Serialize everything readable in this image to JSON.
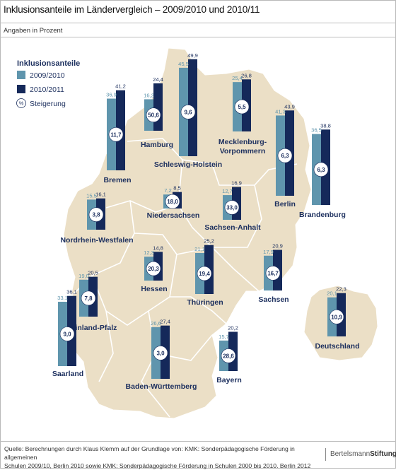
{
  "title": "Inklusionsanteile im Ländervergleich – 2009/2010 und 2010/11",
  "subtitle": "Angaben in Prozent",
  "footer": {
    "source_line1": "Quelle: Berechnungen durch Klaus Klemm auf der Grundlage von: KMK: Sonderpädagogische Förderung in allgemeinen",
    "source_line2": "Schulen 2009/10, Berlin 2010 sowie KMK: Sonderpädagogische Förderung in Schulen 2000 bis 2010. Berlin 2012",
    "brand_left": "Bertelsmann",
    "brand_right": "Stiftung"
  },
  "colors": {
    "series_2009": "#5f95ad",
    "series_2010": "#15295a",
    "map": "#ebdfc6",
    "map_border": "#ffffff",
    "text": "#1c2f5e"
  },
  "chart_data": {
    "type": "bar",
    "title": "Inklusionsanteile im Ländervergleich – 2009/2010 und 2010/11",
    "subtitle": "Angaben in Prozent",
    "legend": {
      "title": "Inklusionsanteile",
      "items": [
        "2009/2010",
        "2010/2011"
      ],
      "circle_symbol": "%",
      "circle_label": "Steigerung",
      "placement": "top-left"
    },
    "series": [
      {
        "name": "2009/2010"
      },
      {
        "name": "2010/2011"
      }
    ],
    "categories": [
      "Schleswig-Holstein",
      "Hamburg",
      "Bremen",
      "Mecklenburg-Vorpommern",
      "Berlin",
      "Brandenburg",
      "Niedersachsen",
      "Sachsen-Anhalt",
      "Nordrhein-Westfalen",
      "Hessen",
      "Thüringen",
      "Sachsen",
      "Rheinland-Pfalz",
      "Saarland",
      "Baden-Württemberg",
      "Bayern",
      "Deutschland"
    ],
    "states": [
      {
        "name": "Schleswig-Holstein",
        "label_lines": [
          "Schleswig-Holstein"
        ],
        "v2009": 45.5,
        "v2010": 49.9,
        "increase": "9,6",
        "v2009_label": "45,5",
        "v2010_label": "49,9"
      },
      {
        "name": "Hamburg",
        "label_lines": [
          "Hamburg"
        ],
        "v2009": 16.2,
        "v2010": 24.4,
        "increase": "50,6",
        "v2009_label": "16,2",
        "v2010_label": "24,4"
      },
      {
        "name": "Bremen",
        "label_lines": [
          "Bremen"
        ],
        "v2009": 36.9,
        "v2010": 41.2,
        "increase": "11,7",
        "v2009_label": "36,9",
        "v2010_label": "41,2"
      },
      {
        "name": "Mecklenburg-Vorpommern",
        "label_lines": [
          "Mecklenburg-",
          "Vorpommern"
        ],
        "v2009": 25.4,
        "v2010": 26.8,
        "increase": "5,5",
        "v2009_label": "25,4",
        "v2010_label": "26,8"
      },
      {
        "name": "Berlin",
        "label_lines": [
          "Berlin"
        ],
        "v2009": 41.3,
        "v2010": 43.9,
        "increase": "6,3",
        "v2009_label": "41,3",
        "v2010_label": "43,9"
      },
      {
        "name": "Brandenburg",
        "label_lines": [
          "Brandenburg"
        ],
        "v2009": 36.5,
        "v2010": 38.8,
        "increase": "6,3",
        "v2009_label": "36,5",
        "v2010_label": "38,8"
      },
      {
        "name": "Niedersachsen",
        "label_lines": [
          "Niedersachsen"
        ],
        "v2009": 7.2,
        "v2010": 8.5,
        "increase": "18,0",
        "v2009_label": "7,2",
        "v2010_label": "8,5"
      },
      {
        "name": "Sachsen-Anhalt",
        "label_lines": [
          "Sachsen-Anhalt"
        ],
        "v2009": 12.7,
        "v2010": 16.9,
        "increase": "33,0",
        "v2009_label": "12,7",
        "v2010_label": "16,9"
      },
      {
        "name": "Nordrhein-Westfalen",
        "label_lines": [
          "Nordrhein-Westfalen"
        ],
        "v2009": 15.5,
        "v2010": 16.1,
        "increase": "3,8",
        "v2009_label": "15,5",
        "v2010_label": "16,1"
      },
      {
        "name": "Hessen",
        "label_lines": [
          "Hessen"
        ],
        "v2009": 12.3,
        "v2010": 14.8,
        "increase": "20,3",
        "v2009_label": "12,3",
        "v2010_label": "14,8"
      },
      {
        "name": "Thüringen",
        "label_lines": [
          "Thüringen"
        ],
        "v2009": 21.1,
        "v2010": 25.2,
        "increase": "19,4",
        "v2009_label": "21,1",
        "v2010_label": "25,2"
      },
      {
        "name": "Sachsen",
        "label_lines": [
          "Sachsen"
        ],
        "v2009": 17.9,
        "v2010": 20.9,
        "increase": "16,7",
        "v2009_label": "17,9",
        "v2010_label": "20,9"
      },
      {
        "name": "Rheinland-Pfalz",
        "label_lines": [
          "Rheinland-Pfalz"
        ],
        "v2009": 19.0,
        "v2010": 20.5,
        "increase": "7,8",
        "v2009_label": "19,0",
        "v2010_label": "20,5"
      },
      {
        "name": "Saarland",
        "label_lines": [
          "Saarland"
        ],
        "v2009": 33.1,
        "v2010": 36.1,
        "increase": "9,0",
        "v2009_label": "33,1",
        "v2010_label": "36,1"
      },
      {
        "name": "Baden-Württemberg",
        "label_lines": [
          "Baden-Württemberg"
        ],
        "v2009": 26.6,
        "v2010": 27.4,
        "increase": "3,0",
        "v2009_label": "26,6",
        "v2010_label": "27,4"
      },
      {
        "name": "Bayern",
        "label_lines": [
          "Bayern"
        ],
        "v2009": 15.7,
        "v2010": 20.2,
        "increase": "28,6",
        "v2009_label": "15,7",
        "v2010_label": "20,2"
      },
      {
        "name": "Deutschland",
        "label_lines": [
          "Deutschland"
        ],
        "v2009": 20.1,
        "v2010": 22.3,
        "increase": "10,9",
        "v2009_label": "20,1",
        "v2010_label": "22,3"
      }
    ]
  }
}
